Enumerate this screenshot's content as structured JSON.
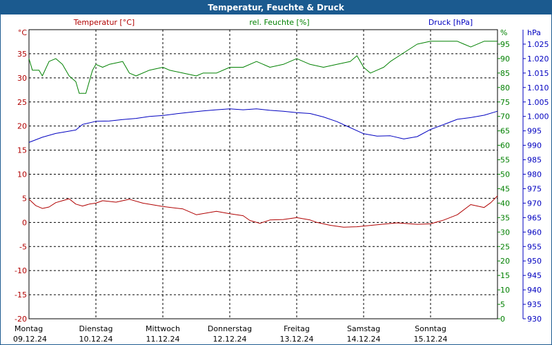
{
  "window": {
    "title": "Temperatur, Feuchte & Druck"
  },
  "chart_data": {
    "type": "line",
    "x_categories": [
      {
        "day": "Montag",
        "date": "09.12.24"
      },
      {
        "day": "Dienstag",
        "date": "10.12.24"
      },
      {
        "day": "Mittwoch",
        "date": "11.12.24"
      },
      {
        "day": "Donnerstag",
        "date": "12.12.24"
      },
      {
        "day": "Freitag",
        "date": "13.12.24"
      },
      {
        "day": "Samstag",
        "date": "14.12.24"
      },
      {
        "day": "Sonntag",
        "date": "15.12.24"
      }
    ],
    "x_range_days": [
      0,
      7
    ],
    "grid": true,
    "axes": {
      "temperature": {
        "label": "Temperatur [°C]",
        "unit": "°C",
        "min": -20,
        "max": 40,
        "ticks": [
          -20,
          -15,
          -10,
          -5,
          0,
          5,
          10,
          15,
          20,
          25,
          30,
          35
        ],
        "color": "#b00000"
      },
      "humidity": {
        "label": "rel. Feuchte [%]",
        "unit": "%",
        "min": 0,
        "max": 100,
        "ticks": [
          0,
          5,
          10,
          15,
          20,
          25,
          30,
          35,
          40,
          45,
          50,
          55,
          60,
          65,
          70,
          75,
          80,
          85,
          90,
          95
        ],
        "color": "#008000"
      },
      "pressure": {
        "label": "Druck [hPa]",
        "unit": "hPa",
        "min": 930,
        "max": 1030,
        "ticks": [
          930,
          935,
          940,
          945,
          950,
          955,
          960,
          965,
          970,
          975,
          980,
          985,
          990,
          995,
          1000,
          1005,
          1010,
          1015,
          1020,
          1025
        ],
        "tick_labels": [
          "930",
          "935",
          "940",
          "945",
          "950",
          "955",
          "960",
          "965",
          "970",
          "975",
          "980",
          "985",
          "990",
          "995",
          "1.000",
          "1.005",
          "1.010",
          "1.015",
          "1.020",
          "1.025"
        ],
        "color": "#0000c0"
      }
    },
    "series": [
      {
        "name": "Temperatur [°C]",
        "axis": "temperature",
        "color": "#b00000",
        "x": [
          0,
          0.1,
          0.2,
          0.3,
          0.4,
          0.5,
          0.6,
          0.7,
          0.8,
          0.9,
          1.0,
          1.1,
          1.3,
          1.5,
          1.7,
          2.0,
          2.3,
          2.5,
          2.8,
          3.0,
          3.2,
          3.3,
          3.45,
          3.6,
          3.8,
          4.0,
          4.2,
          4.3,
          4.5,
          4.7,
          4.9,
          5.2,
          5.5,
          5.8,
          6.0,
          6.2,
          6.4,
          6.6,
          6.8,
          6.9,
          7.0
        ],
        "values": [
          4.8,
          3.5,
          2.9,
          3.2,
          4.1,
          4.5,
          4.9,
          3.8,
          3.4,
          3.8,
          4.0,
          4.5,
          4.2,
          4.8,
          4.0,
          3.3,
          2.8,
          1.6,
          2.3,
          1.8,
          1.4,
          0.4,
          -0.2,
          0.5,
          0.6,
          1.0,
          0.5,
          0.0,
          -0.6,
          -1.0,
          -0.9,
          -0.5,
          -0.1,
          -0.4,
          -0.3,
          0.5,
          1.6,
          3.7,
          3.1,
          4.1,
          5.5
        ]
      },
      {
        "name": "rel. Feuchte [%]",
        "axis": "humidity",
        "color": "#008000",
        "x": [
          0,
          0.05,
          0.15,
          0.2,
          0.3,
          0.4,
          0.5,
          0.6,
          0.7,
          0.75,
          0.85,
          0.95,
          1.0,
          1.1,
          1.2,
          1.4,
          1.5,
          1.6,
          1.8,
          2.0,
          2.1,
          2.3,
          2.5,
          2.6,
          2.8,
          3.0,
          3.2,
          3.4,
          3.6,
          3.8,
          4.0,
          4.2,
          4.4,
          4.6,
          4.8,
          4.9,
          5.0,
          5.1,
          5.2,
          5.3,
          5.4,
          5.6,
          5.8,
          6.0,
          6.2,
          6.4,
          6.5,
          6.6,
          6.8,
          7.0
        ],
        "values": [
          90,
          86,
          86,
          84,
          89,
          90,
          88,
          84,
          82,
          78,
          78,
          86,
          88,
          87,
          88,
          89,
          85,
          84,
          86,
          87,
          86,
          85,
          84,
          85,
          85,
          87,
          87,
          89,
          87,
          88,
          90,
          88,
          87,
          88,
          89,
          91,
          87,
          85,
          86,
          87,
          89,
          92,
          95,
          96,
          96,
          96,
          95,
          94,
          96,
          96
        ]
      },
      {
        "name": "Druck [hPa]",
        "axis": "pressure",
        "color": "#0000c0",
        "x": [
          0,
          0.2,
          0.4,
          0.5,
          0.7,
          0.8,
          1.0,
          1.2,
          1.4,
          1.6,
          1.8,
          2.0,
          2.2,
          2.4,
          2.6,
          2.8,
          3.0,
          3.2,
          3.4,
          3.6,
          3.8,
          4.0,
          4.2,
          4.4,
          4.6,
          4.8,
          5.0,
          5.2,
          5.4,
          5.6,
          5.8,
          6.0,
          6.2,
          6.4,
          6.6,
          6.8,
          7.0
        ],
        "values": [
          991.0,
          992.8,
          994.1,
          994.5,
          995.3,
          997.2,
          998.3,
          998.4,
          998.9,
          999.3,
          1000.0,
          1000.3,
          1000.9,
          1001.4,
          1001.9,
          1002.3,
          1002.6,
          1002.3,
          1002.6,
          1002.1,
          1001.8,
          1001.3,
          1001.0,
          999.8,
          998.2,
          996.1,
          994.0,
          993.2,
          993.3,
          992.2,
          993.0,
          995.5,
          997.2,
          999.0,
          999.6,
          1000.4,
          1001.8
        ]
      }
    ]
  }
}
